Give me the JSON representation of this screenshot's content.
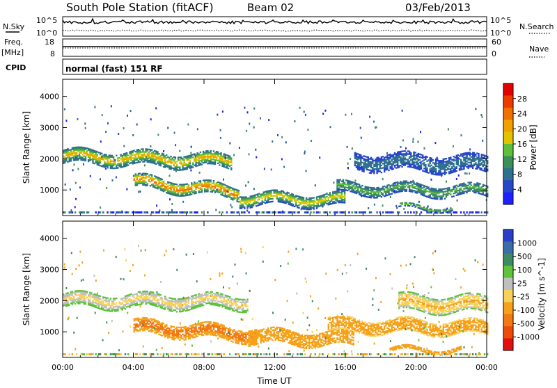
{
  "header": {
    "title": "South Pole Station (fitACF)",
    "beam": "Beam 02",
    "date": "03/Feb/2013"
  },
  "panels": {
    "nsky": {
      "label": "N.Sky",
      "ticks": [
        "10^5",
        "10^0"
      ],
      "right_label": "N.Search",
      "right_ticks": [
        "10^5",
        "10^0"
      ]
    },
    "freq": {
      "label": "Freq.",
      "unit": "[MHz]",
      "ticks": [
        "18",
        "8"
      ],
      "right_label": "Nave",
      "right_ticks": [
        "60",
        "0"
      ]
    },
    "cpid": {
      "label": "CPID",
      "text": "normal (fast) 151 RF"
    }
  },
  "colors": {
    "power_scale": [
      "#1f1fff",
      "#2747c9",
      "#2f6f8f",
      "#3d8f5a",
      "#5fbf3a",
      "#e0c400",
      "#f0a000",
      "#f07000",
      "#ee3a00",
      "#e00000"
    ],
    "velocity_scale": [
      "#2a3ec8",
      "#3a6ea8",
      "#3f8a60",
      "#5ec23a",
      "#bfbfbf",
      "#f6d25a",
      "#f5a21a",
      "#f27a12",
      "#ee4a0a",
      "#e01010"
    ]
  },
  "chart_data": [
    {
      "type": "heatmap",
      "name": "power",
      "title": "",
      "xlabel": "",
      "ylabel": "Slant Range [km]",
      "xlim": [
        0,
        24
      ],
      "ylim": [
        180,
        4550
      ],
      "x_ticks": [
        "00:00",
        "04:00",
        "08:00",
        "12:00",
        "16:00",
        "20:00",
        "00:00"
      ],
      "y_ticks": [
        1000,
        2000,
        3000,
        4000
      ],
      "colorbar": {
        "label": "Power [dB]",
        "ticks": [
          "28",
          "24",
          "20",
          "16",
          "12",
          "8",
          "4"
        ],
        "range": [
          0,
          30
        ]
      },
      "echo_bands": [
        {
          "t": [
            0,
            9.5
          ],
          "range_center_start": 2050,
          "range_center_end": 1900,
          "width": 420,
          "peak_db": 20
        },
        {
          "t": [
            4,
            10
          ],
          "range_center_start": 1250,
          "range_center_end": 900,
          "width": 380,
          "peak_db": 24
        },
        {
          "t": [
            10,
            16
          ],
          "range_center_start": 700,
          "range_center_end": 650,
          "width": 380,
          "peak_db": 18
        },
        {
          "t": [
            15.5,
            24
          ],
          "range_center_start": 1050,
          "range_center_end": 950,
          "width": 350,
          "peak_db": 14
        },
        {
          "t": [
            16.5,
            24
          ],
          "range_center_start": 1900,
          "range_center_end": 1800,
          "width": 500,
          "peak_db": 8
        },
        {
          "t": [
            19,
            22
          ],
          "range_center_start": 420,
          "range_center_end": 420,
          "width": 120,
          "peak_db": 18
        }
      ]
    },
    {
      "type": "heatmap",
      "name": "velocity",
      "title": "",
      "xlabel": "Time UT",
      "ylabel": "Slant Range [km]",
      "xlim": [
        0,
        24
      ],
      "ylim": [
        180,
        4550
      ],
      "x_ticks": [
        "00:00",
        "04:00",
        "08:00",
        "12:00",
        "16:00",
        "20:00",
        "00:00"
      ],
      "y_ticks": [
        1000,
        2000,
        3000,
        4000
      ],
      "colorbar": {
        "label": "Velocity [m s^-1]",
        "ticks": [
          "1000",
          "500",
          "100",
          "25",
          "-25",
          "-100",
          "-500",
          "-1000"
        ],
        "range": [
          -1000,
          1000
        ]
      },
      "echo_bands": [
        {
          "t": [
            0,
            10.5
          ],
          "range_center_start": 2000,
          "range_center_end": 1950,
          "width": 450,
          "velocity": 0
        },
        {
          "t": [
            4,
            11
          ],
          "range_center_start": 1150,
          "range_center_end": 900,
          "width": 450,
          "velocity": -300
        },
        {
          "t": [
            10.5,
            16.5
          ],
          "range_center_start": 850,
          "range_center_end": 750,
          "width": 450,
          "velocity": -200
        },
        {
          "t": [
            15,
            24
          ],
          "range_center_start": 1200,
          "range_center_end": 1100,
          "width": 420,
          "velocity": -150
        },
        {
          "t": [
            19,
            24
          ],
          "range_center_start": 1900,
          "range_center_end": 1850,
          "width": 500,
          "velocity": -50
        },
        {
          "t": [
            18.5,
            22.5
          ],
          "range_center_start": 420,
          "range_center_end": 420,
          "width": 130,
          "velocity": -200
        }
      ]
    }
  ]
}
